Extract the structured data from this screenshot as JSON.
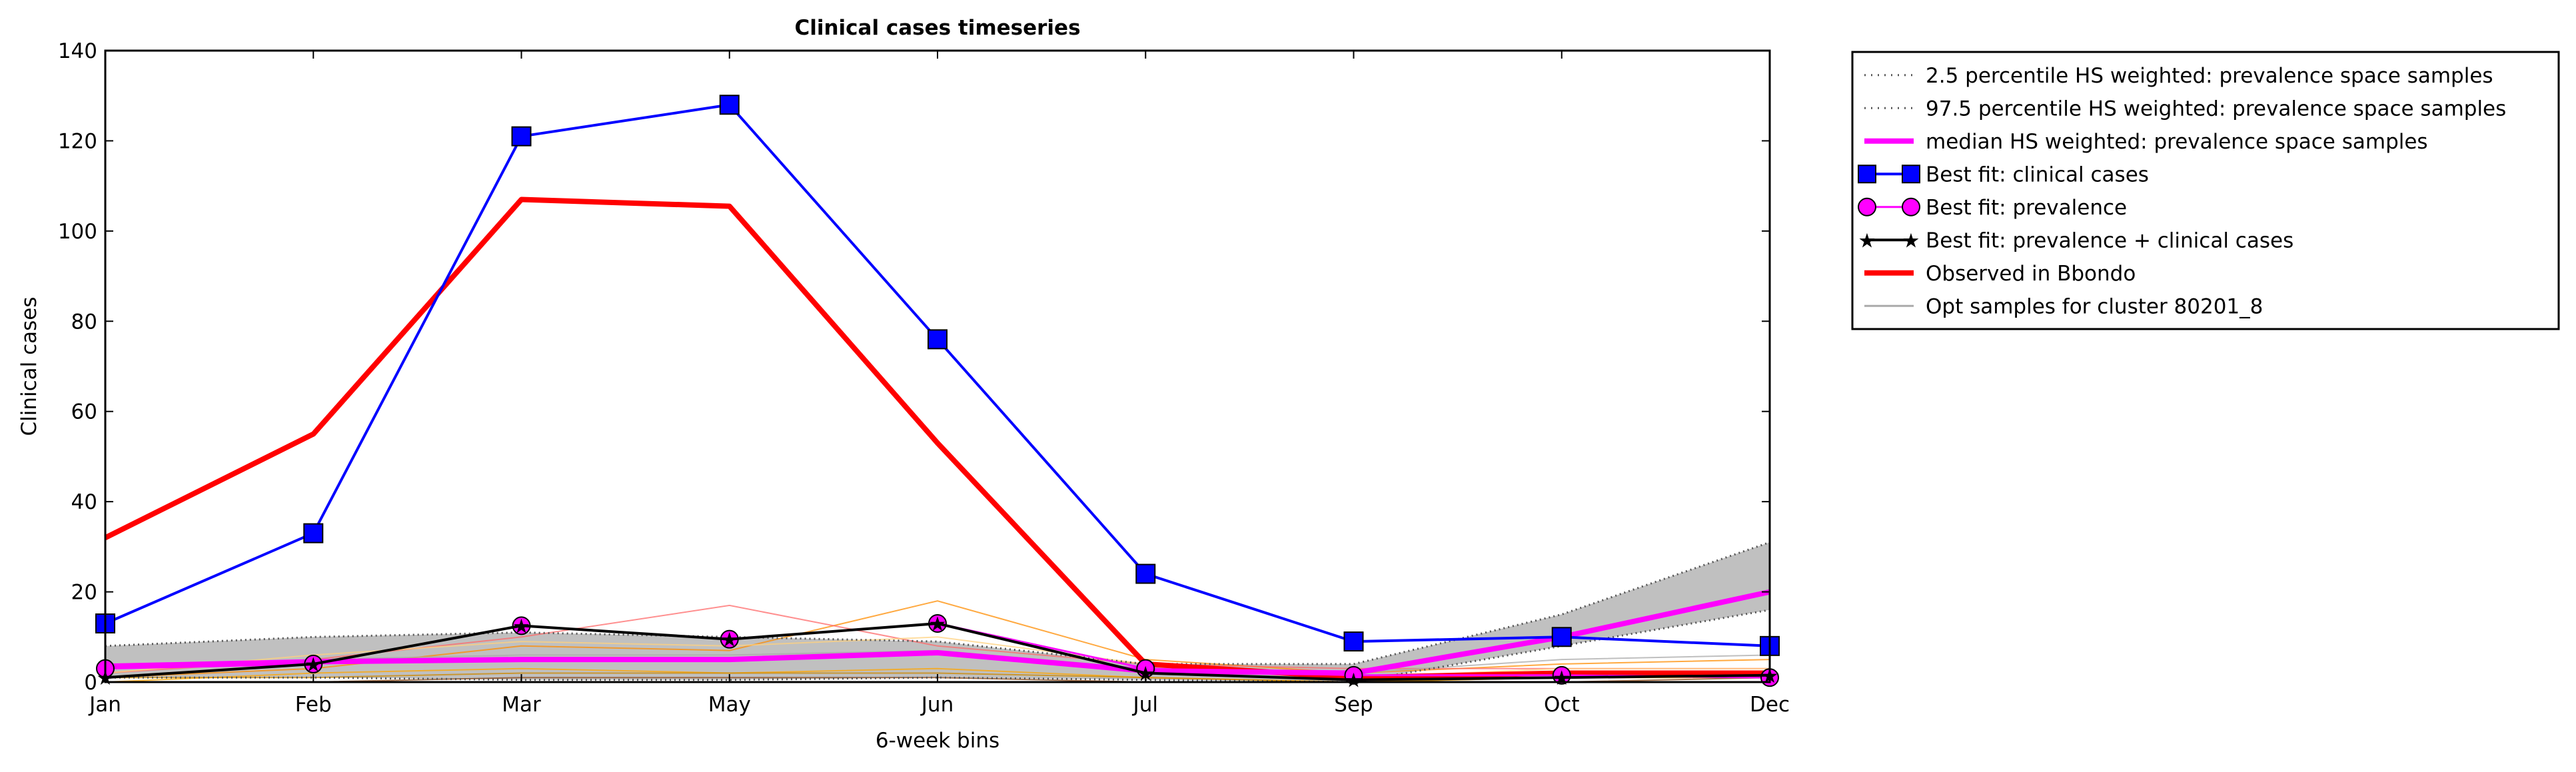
{
  "chart_data": {
    "type": "line",
    "title": "Clinical cases timeseries",
    "xlabel": "6-week bins",
    "ylabel": "Clinical cases",
    "categories": [
      "Jan",
      "Feb",
      "Mar",
      "May",
      "Jun",
      "Jul",
      "Sep",
      "Oct",
      "Dec"
    ],
    "ylim": [
      0,
      140
    ],
    "yticks": [
      0,
      20,
      40,
      60,
      80,
      100,
      120,
      140
    ],
    "legend_position": "outside-top-right",
    "legend": [
      {
        "label": "2.5 percentile HS weighted: prevalence space samples",
        "style": "dotted",
        "color": "#555555"
      },
      {
        "label": "97.5 percentile HS weighted: prevalence space samples",
        "style": "dotted",
        "color": "#555555"
      },
      {
        "label": "median HS weighted: prevalence space samples",
        "style": "thick",
        "color": "#ff00ff"
      },
      {
        "label": "Best fit: clinical cases",
        "style": "square",
        "color": "#0000ff"
      },
      {
        "label": "Best fit: prevalence",
        "style": "circle",
        "color": "#ff00ff"
      },
      {
        "label": "Best fit: prevalence + clinical cases",
        "style": "star",
        "color": "#000000"
      },
      {
        "label": "Observed in Bbondo",
        "style": "thick",
        "color": "#ff0000"
      },
      {
        "label": "Opt samples for cluster 80201_8",
        "style": "thin",
        "color": "#aaaaaa"
      }
    ],
    "series": [
      {
        "name": "2.5 percentile HS weighted: prevalence space samples",
        "color": "#555555",
        "values": [
          1,
          1,
          0.5,
          0.5,
          1,
          0.5,
          0,
          8,
          16
        ]
      },
      {
        "name": "97.5 percentile HS weighted: prevalence space samples",
        "color": "#555555",
        "values": [
          8,
          10,
          11,
          10,
          9,
          4,
          4,
          15,
          31
        ]
      },
      {
        "name": "median HS weighted: prevalence space samples",
        "color": "#ff00ff",
        "values": [
          3.5,
          4.5,
          5,
          5,
          6.5,
          2.5,
          2,
          10,
          20
        ]
      },
      {
        "name": "Best fit: clinical cases",
        "color": "#0000ff",
        "values": [
          13,
          33,
          121,
          128,
          76,
          24,
          9,
          10,
          8
        ]
      },
      {
        "name": "Best fit: prevalence",
        "color": "#ff00ff",
        "values": [
          3,
          4,
          12.5,
          9.5,
          13,
          3,
          1.5,
          1.5,
          1
        ]
      },
      {
        "name": "Best fit: prevalence + clinical cases",
        "color": "#000000",
        "values": [
          1,
          4,
          12.5,
          9.5,
          13,
          2,
          0.5,
          1,
          1.5
        ]
      },
      {
        "name": "Observed in Bbondo",
        "color": "#ff0000",
        "values": [
          32,
          55,
          107,
          105.5,
          53,
          4,
          1,
          2,
          2
        ]
      }
    ],
    "sample_lines": [
      {
        "color": "#ff8c00",
        "values": [
          1,
          3,
          8,
          7,
          18,
          5,
          2,
          4,
          5
        ]
      },
      {
        "color": "#ff6a6a",
        "values": [
          2,
          5,
          10,
          17,
          8,
          4,
          3,
          3,
          3
        ]
      },
      {
        "color": "#ffa500",
        "values": [
          0,
          2,
          3,
          2,
          3,
          1,
          0,
          1,
          1
        ]
      },
      {
        "color": "#cc8800",
        "values": [
          1,
          1,
          2,
          2,
          2,
          1,
          0,
          1,
          2
        ]
      },
      {
        "color": "#8b4513",
        "values": [
          0,
          0,
          1,
          1,
          1,
          0,
          0,
          0,
          1
        ]
      },
      {
        "color": "#ffd27f",
        "values": [
          2,
          6,
          9,
          8,
          10,
          4,
          1,
          3,
          3
        ]
      },
      {
        "color": "#aaaaaa",
        "values": [
          3,
          5,
          6,
          6,
          7,
          3,
          2,
          5,
          6
        ]
      }
    ]
  }
}
